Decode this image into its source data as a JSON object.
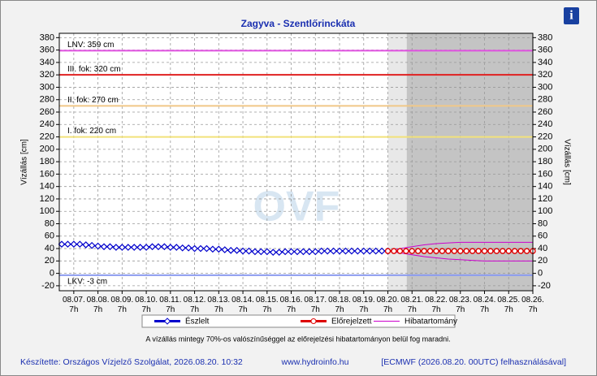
{
  "chart_data": {
    "type": "line",
    "title": "Zagyva - Szentlőrinckáta",
    "ylabel": "Vízállás [cm]",
    "watermark": "OVF",
    "info_icon": "i",
    "xlim": [
      6.69,
      26.29
    ],
    "ylim": [
      -28,
      387
    ],
    "grid": true,
    "yticks": [
      -20,
      0,
      20,
      40,
      60,
      80,
      100,
      120,
      140,
      160,
      180,
      200,
      220,
      240,
      260,
      280,
      300,
      320,
      340,
      360,
      380
    ],
    "xticks": [
      {
        "value": 7.29,
        "label": "08.07. 7h"
      },
      {
        "value": 8.29,
        "label": "08.08. 7h"
      },
      {
        "value": 9.29,
        "label": "08.09. 7h"
      },
      {
        "value": 10.29,
        "label": "08.10. 7h"
      },
      {
        "value": 11.29,
        "label": "08.11. 7h"
      },
      {
        "value": 12.29,
        "label": "08.12. 7h"
      },
      {
        "value": 13.29,
        "label": "08.13. 7h"
      },
      {
        "value": 14.29,
        "label": "08.14. 7h"
      },
      {
        "value": 15.29,
        "label": "08.15. 7h"
      },
      {
        "value": 16.29,
        "label": "08.16. 7h"
      },
      {
        "value": 17.29,
        "label": "08.17. 7h"
      },
      {
        "value": 18.29,
        "label": "08.18. 7h"
      },
      {
        "value": 19.29,
        "label": "08.19. 7h"
      },
      {
        "value": 20.29,
        "label": "08.20. 7h"
      },
      {
        "value": 21.29,
        "label": "08.21. 7h"
      },
      {
        "value": 22.29,
        "label": "08.22. 7h"
      },
      {
        "value": 23.29,
        "label": "08.23. 7h"
      },
      {
        "value": 24.29,
        "label": "08.24. 7h"
      },
      {
        "value": 25.29,
        "label": "08.25. 7h"
      },
      {
        "value": 26.29,
        "label": "08.26. 7h"
      }
    ],
    "shaded": [
      {
        "from": 20.29,
        "to": 21.07,
        "color": "#e8e8e8"
      },
      {
        "from": 21.07,
        "to": 26.29,
        "color": "#c4c4c4"
      }
    ],
    "thresholds": [
      {
        "label": "LNV: 359 cm",
        "value": 359,
        "color": "#e050e0"
      },
      {
        "label": "III. fok: 320 cm",
        "value": 320,
        "color": "#e02020"
      },
      {
        "label": "II. fok: 270 cm",
        "value": 270,
        "color": "#f0c888"
      },
      {
        "label": "I. fok: 220 cm",
        "value": 220,
        "color": "#f2e27a"
      },
      {
        "label": "LKV: -3 cm",
        "value": -3,
        "color": "#8c9cf0"
      }
    ],
    "series": [
      {
        "name": "Észlelt",
        "color": "#0000cc",
        "marker": "diamond",
        "x": [
          6.79,
          7.04,
          7.29,
          7.54,
          7.79,
          8.04,
          8.29,
          8.54,
          8.79,
          9.04,
          9.29,
          9.54,
          9.79,
          10.04,
          10.29,
          10.54,
          10.79,
          11.04,
          11.29,
          11.54,
          11.79,
          12.04,
          12.29,
          12.54,
          12.79,
          13.04,
          13.29,
          13.54,
          13.79,
          14.04,
          14.29,
          14.54,
          14.79,
          15.04,
          15.29,
          15.54,
          15.79,
          16.04,
          16.29,
          16.54,
          16.79,
          17.04,
          17.29,
          17.54,
          17.79,
          18.04,
          18.29,
          18.54,
          18.79,
          19.04,
          19.29,
          19.54,
          19.79,
          20.04,
          20.29
        ],
        "values": [
          47,
          47,
          47,
          47,
          46,
          45,
          44,
          43,
          43,
          42,
          42,
          42,
          42,
          42,
          42,
          43,
          43,
          43,
          42,
          42,
          41,
          41,
          40,
          40,
          40,
          39,
          39,
          38,
          37,
          37,
          36,
          36,
          35,
          35,
          35,
          34,
          34,
          35,
          35,
          35,
          35,
          35,
          35,
          36,
          36,
          36,
          36,
          36,
          36,
          36,
          36,
          36,
          36,
          36,
          36
        ]
      },
      {
        "name": "Előrejelzett",
        "color": "#dd0000",
        "marker": "circle",
        "x": [
          20.29,
          20.54,
          20.79,
          21.04,
          21.29,
          21.54,
          21.79,
          22.04,
          22.29,
          22.54,
          22.79,
          23.04,
          23.29,
          23.54,
          23.79,
          24.04,
          24.29,
          24.54,
          24.79,
          25.04,
          25.29,
          25.54,
          25.79,
          26.04,
          26.29
        ],
        "values": [
          36,
          36,
          36,
          36,
          36,
          36,
          36,
          36,
          36,
          36,
          36,
          36,
          36,
          36,
          36,
          36,
          36,
          36,
          36,
          36,
          36,
          36,
          36,
          36,
          36
        ]
      },
      {
        "name": "Hibatartomány",
        "color": "#cc00cc",
        "marker": "band",
        "x": [
          20.29,
          20.79,
          21.29,
          21.79,
          22.29,
          22.79,
          23.29,
          23.79,
          24.29,
          24.79,
          25.29,
          25.79,
          26.29
        ],
        "values": [
          36,
          40,
          43,
          46,
          48,
          49,
          50,
          50,
          50,
          50,
          50,
          50,
          50
        ],
        "low": [
          36,
          33,
          30,
          27,
          25,
          23,
          22,
          21,
          20,
          20,
          20,
          20,
          20
        ]
      }
    ],
    "note": "A vízállás mintegy 70%-os valószínűséggel az előrejelzési hibatartományon belül fog maradni.",
    "footer": [
      "Készítette: Országos Vízjelző Szolgálat, 2026.08.20. 10:32",
      "www.hydroinfo.hu",
      "[ECMWF (2026.08.20. 00UTC) felhasználásával]"
    ]
  }
}
